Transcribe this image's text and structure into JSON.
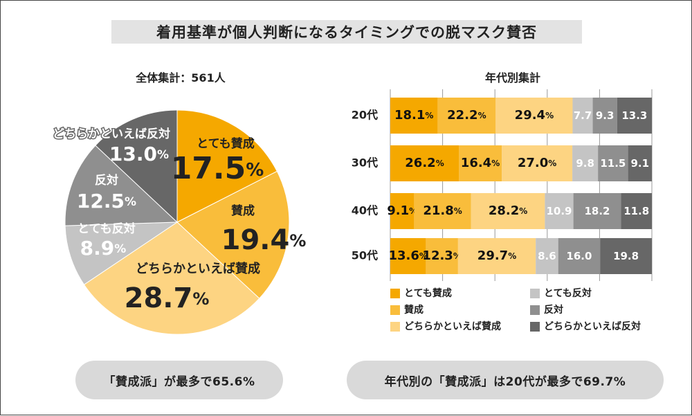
{
  "title": "着用基準が個人判断になるタイミングでの脱マスク賛否",
  "colors": {
    "strong_agree": "#f5a800",
    "agree": "#f9bd3b",
    "somewhat_agree": "#fdd482",
    "strong_disagree": "#c4c4c4",
    "disagree": "#8f8f8f",
    "somewhat_disagree": "#676767"
  },
  "summary_left": "「賛成派」が最多で65.6%",
  "summary_right": "年代別の「賛成派」は20代が最多で69.7%",
  "chart_data": [
    {
      "type": "pie",
      "title": "全体集計：561人",
      "slices": [
        {
          "label": "とても賛成",
          "value": 17.5,
          "value_text": "17.5",
          "color_key": "strong_agree"
        },
        {
          "label": "賛成",
          "value": 19.4,
          "value_text": "19.4",
          "color_key": "agree"
        },
        {
          "label": "どちらかといえば賛成",
          "value": 28.7,
          "value_text": "28.7",
          "color_key": "somewhat_agree"
        },
        {
          "label": "とても反対",
          "value": 8.9,
          "value_text": "8.9",
          "color_key": "strong_disagree"
        },
        {
          "label": "反対",
          "value": 12.5,
          "value_text": "12.5",
          "color_key": "disagree"
        },
        {
          "label": "どちらかといえば反対",
          "value": 13.0,
          "value_text": "13.0",
          "color_key": "somewhat_disagree"
        }
      ]
    },
    {
      "type": "bar",
      "orientation": "horizontal",
      "stacked": true,
      "title": "年代別集計",
      "categories": [
        "20代",
        "30代",
        "40代",
        "50代"
      ],
      "xlim": [
        0,
        100
      ],
      "grid": true,
      "series": [
        {
          "name": "とても賛成",
          "color_key": "strong_agree",
          "values": [
            18.1,
            26.2,
            9.1,
            13.6
          ],
          "labels": [
            "18.1",
            "26.2",
            "9.1",
            "13.6"
          ],
          "pct": true
        },
        {
          "name": "賛成",
          "color_key": "agree",
          "values": [
            22.2,
            16.4,
            21.8,
            12.3
          ],
          "labels": [
            "22.2",
            "16.4",
            "21.8",
            "12.3"
          ],
          "pct": true
        },
        {
          "name": "どちらかといえば賛成",
          "color_key": "somewhat_agree",
          "values": [
            29.4,
            27.0,
            28.2,
            29.7
          ],
          "labels": [
            "29.4",
            "27.0",
            "28.2",
            "29.7"
          ],
          "pct": true
        },
        {
          "name": "とても反対",
          "color_key": "strong_disagree",
          "values": [
            7.7,
            9.8,
            10.9,
            8.6
          ],
          "labels": [
            "7.7",
            "9.8",
            "10.9",
            "8.6"
          ],
          "pct": false
        },
        {
          "name": "反対",
          "color_key": "disagree",
          "values": [
            9.3,
            11.5,
            18.2,
            16.0
          ],
          "labels": [
            "9.3",
            "11.5",
            "18.2",
            "16.0"
          ],
          "pct": false
        },
        {
          "name": "どちらかといえば反対",
          "color_key": "somewhat_disagree",
          "values": [
            13.3,
            9.1,
            11.8,
            19.8
          ],
          "labels": [
            "13.3",
            "9.1",
            "11.8",
            "19.8"
          ],
          "pct": false
        }
      ],
      "percent_sign": "%"
    }
  ]
}
